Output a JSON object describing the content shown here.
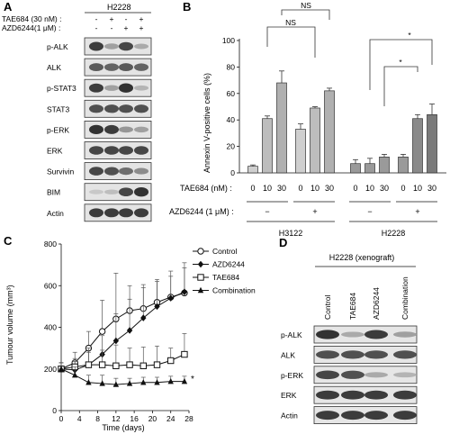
{
  "panels": {
    "A": {
      "letter": "A",
      "cell_line": "H2228",
      "treatments": [
        {
          "label": "TAE684 (30 nM) :",
          "marks": [
            "-",
            "+",
            "-",
            "+"
          ]
        },
        {
          "label": "AZD6244(1 μM) :",
          "marks": [
            "-",
            "-",
            "+",
            "+"
          ]
        }
      ],
      "blots": [
        {
          "label": "p-ALK",
          "bands": [
            0.85,
            0.35,
            0.8,
            0.3
          ]
        },
        {
          "label": "ALK",
          "bands": [
            0.7,
            0.65,
            0.7,
            0.65
          ]
        },
        {
          "label": "p-STAT3",
          "bands": [
            0.85,
            0.35,
            0.9,
            0.25
          ]
        },
        {
          "label": "STAT3",
          "bands": [
            0.75,
            0.75,
            0.75,
            0.75
          ]
        },
        {
          "label": "p-ERK",
          "bands": [
            0.9,
            0.85,
            0.4,
            0.35
          ]
        },
        {
          "label": "ERK",
          "bands": [
            0.8,
            0.8,
            0.8,
            0.8
          ]
        },
        {
          "label": "Survivin",
          "bands": [
            0.8,
            0.75,
            0.6,
            0.45
          ]
        },
        {
          "label": "BIM",
          "bands": [
            0.15,
            0.2,
            0.8,
            0.9
          ]
        },
        {
          "label": "Actin",
          "bands": [
            0.85,
            0.85,
            0.85,
            0.85
          ]
        }
      ]
    },
    "B": {
      "letter": "B",
      "ylabel": "Annexin V-positive cells (%)",
      "ylim": [
        0,
        100
      ],
      "yticks": [
        0,
        20,
        40,
        60,
        80,
        100
      ],
      "row1_label": "TAE684 (nM) :",
      "row2_label": "AZD6244 (1 μM) :",
      "tae_doses": [
        "0",
        "10",
        "30",
        "0",
        "10",
        "30",
        "0",
        "10",
        "30",
        "0",
        "10",
        "30"
      ],
      "azd_marks": [
        "−",
        "+",
        "−",
        "+"
      ],
      "groups": [
        "H3122",
        "H2228"
      ],
      "sig_labels": [
        "NS",
        "NS",
        "*",
        "*"
      ]
    },
    "C": {
      "letter": "C",
      "ylabel": "Tumour volume (mm³)",
      "xlabel": "Time (days)",
      "xticks": [
        0,
        4,
        8,
        12,
        16,
        20,
        24,
        28
      ],
      "yticks": [
        0,
        200,
        400,
        600,
        800
      ],
      "legend": [
        "Control",
        "AZD6244",
        "TAE684",
        "Combination"
      ],
      "star": "*"
    },
    "D": {
      "letter": "D",
      "title": "H2228 (xenograft)",
      "columns": [
        "Control",
        "TAE684",
        "AZD6244",
        "Combination"
      ],
      "blots": [
        {
          "label": "p-ALK",
          "bands": [
            0.9,
            0.3,
            0.85,
            0.35
          ]
        },
        {
          "label": "ALK",
          "bands": [
            0.75,
            0.75,
            0.75,
            0.75
          ]
        },
        {
          "label": "p-ERK",
          "bands": [
            0.8,
            0.75,
            0.3,
            0.25
          ]
        },
        {
          "label": "ERK",
          "bands": [
            0.85,
            0.85,
            0.85,
            0.85
          ]
        },
        {
          "label": "Actin",
          "bands": [
            0.85,
            0.85,
            0.85,
            0.85
          ]
        }
      ]
    }
  },
  "chart_data": [
    {
      "type": "bar",
      "panel": "B",
      "categories": [
        "H3122 TAE0/AZD−",
        "H3122 TAE10/AZD−",
        "H3122 TAE30/AZD−",
        "H3122 TAE0/AZD+",
        "H3122 TAE10/AZD+",
        "H3122 TAE30/AZD+",
        "H2228 TAE0/AZD−",
        "H2228 TAE10/AZD−",
        "H2228 TAE30/AZD−",
        "H2228 TAE0/AZD+",
        "H2228 TAE10/AZD+",
        "H2228 TAE30/AZD+"
      ],
      "values": [
        5,
        41,
        68,
        33,
        49,
        62,
        7,
        7,
        12,
        12,
        41,
        44
      ],
      "errors": [
        1,
        2,
        9,
        4,
        1,
        2,
        3,
        4,
        2,
        2,
        3,
        8
      ],
      "ylabel": "Annexin V-positive cells (%)",
      "ylim": [
        0,
        100
      ]
    },
    {
      "type": "line",
      "panel": "C",
      "xlabel": "Time (days)",
      "ylabel": "Tumour volume (mm³)",
      "xlim": [
        0,
        28
      ],
      "ylim": [
        0,
        800
      ],
      "series": [
        {
          "name": "Control",
          "marker": "open-circle",
          "x": [
            0,
            3,
            6,
            9,
            12,
            15,
            18,
            21,
            24,
            27
          ],
          "y": [
            200,
            230,
            300,
            380,
            440,
            480,
            490,
            520,
            545,
            565
          ],
          "err": [
            30,
            50,
            80,
            150,
            220,
            120,
            100,
            110,
            100,
            120
          ]
        },
        {
          "name": "AZD6244",
          "marker": "filled-diamond",
          "x": [
            0,
            3,
            6,
            9,
            12,
            15,
            18,
            21,
            24,
            27
          ],
          "y": [
            200,
            195,
            220,
            270,
            335,
            385,
            445,
            500,
            540,
            570
          ],
          "err": [
            30,
            40,
            60,
            90,
            130,
            150,
            160,
            120,
            130,
            140
          ]
        },
        {
          "name": "TAE684",
          "marker": "open-square",
          "x": [
            0,
            3,
            6,
            9,
            12,
            15,
            18,
            21,
            24,
            27
          ],
          "y": [
            200,
            210,
            220,
            220,
            215,
            220,
            215,
            220,
            240,
            270
          ],
          "err": [
            30,
            40,
            80,
            70,
            100,
            80,
            90,
            90,
            60,
            100
          ]
        },
        {
          "name": "Combination",
          "marker": "filled-triangle",
          "x": [
            0,
            3,
            6,
            9,
            12,
            15,
            18,
            21,
            24,
            27
          ],
          "y": [
            200,
            170,
            135,
            130,
            125,
            130,
            135,
            135,
            140,
            140
          ],
          "err": [
            30,
            40,
            35,
            40,
            30,
            25,
            25,
            25,
            25,
            25
          ]
        }
      ]
    }
  ]
}
